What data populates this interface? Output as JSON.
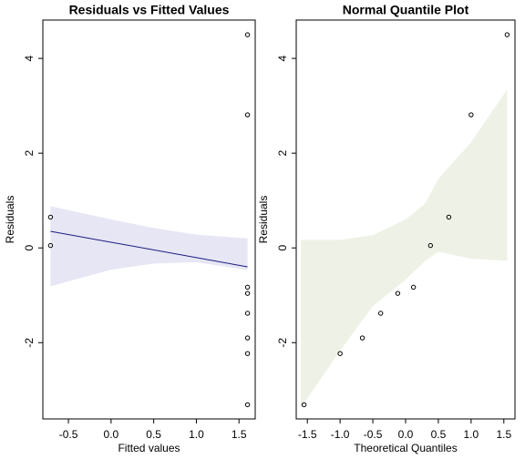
{
  "chart_data": [
    {
      "type": "scatter",
      "title": "Residuals vs Fitted Values",
      "x_label": "Fitted values",
      "y_label": "Residuals",
      "x": [
        -0.71,
        -0.71,
        1.6,
        1.6,
        1.6,
        1.6,
        1.6,
        1.6,
        1.6,
        1.6
      ],
      "values": [
        0.65,
        0.05,
        4.5,
        2.81,
        -0.83,
        -0.96,
        -1.38,
        -1.9,
        -2.23,
        -3.31
      ],
      "color": "#000000",
      "fit_line": {
        "x": [
          -0.71,
          1.6
        ],
        "values": [
          0.35,
          -0.4
        ],
        "color": "#1a1a80"
      },
      "band": {
        "x": [
          -0.71,
          0,
          0.5,
          1.0,
          1.6
        ],
        "upper": [
          0.88,
          0.6,
          0.42,
          0.28,
          0.2
        ],
        "lower": [
          -0.81,
          -0.46,
          -0.33,
          -0.3,
          -0.47
        ],
        "color": "#e6e6f5"
      },
      "xlim": [
        -0.8,
        1.69
      ],
      "ylim": [
        -3.61,
        4.81
      ],
      "xticks": [
        -0.5,
        {
          "value": 0,
          "label": "0.0"
        },
        0.5,
        {
          "value": 1,
          "label": "1.0"
        },
        1.5
      ],
      "yticks": [
        -2,
        0,
        2,
        4
      ]
    },
    {
      "type": "scatter",
      "title": "Normal Quantile Plot",
      "x_label": "Theoretical Quantiles",
      "y_label": "Residuals",
      "x": [
        -1.55,
        -1.0,
        -0.66,
        -0.38,
        -0.12,
        0.12,
        0.38,
        0.66,
        1.0,
        1.55
      ],
      "values": [
        -3.31,
        -2.23,
        -1.9,
        -1.38,
        -0.96,
        -0.83,
        0.05,
        0.65,
        2.81,
        4.5
      ],
      "color": "#000000",
      "band": {
        "x": [
          -1.6,
          -1.0,
          -0.5,
          0,
          0.3,
          0.5,
          1.0,
          1.55
        ],
        "upper": [
          0.17,
          0.17,
          0.27,
          0.6,
          0.94,
          1.46,
          2.23,
          3.35
        ],
        "lower": [
          -3.38,
          -2.17,
          -1.23,
          -0.67,
          -0.27,
          -0.08,
          -0.23,
          -0.27
        ],
        "color": "#eef2e6"
      },
      "xlim": [
        -1.67,
        1.67
      ],
      "ylim": [
        -3.61,
        4.81
      ],
      "xticks": [
        -1.5,
        {
          "value": -1,
          "label": "-1.0"
        },
        -0.5,
        {
          "value": 0,
          "label": "0.0"
        },
        0.5,
        {
          "value": 1,
          "label": "1.0"
        },
        1.5
      ],
      "yticks": [
        -2,
        0,
        2,
        4
      ]
    }
  ]
}
